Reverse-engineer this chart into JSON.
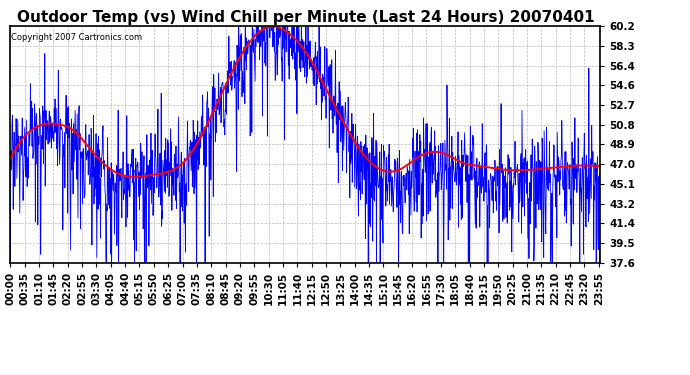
{
  "title": "Outdoor Temp (vs) Wind Chill per Minute (Last 24 Hours) 20070401",
  "copyright_text": "Copyright 2007 Cartronics.com",
  "ylabel_right_ticks": [
    60.2,
    58.3,
    56.4,
    54.6,
    52.7,
    50.8,
    48.9,
    47.0,
    45.1,
    43.2,
    41.4,
    39.5,
    37.6
  ],
  "ylim": [
    37.6,
    60.2
  ],
  "xlim": [
    0,
    1439
  ],
  "background_color": "#ffffff",
  "plot_bg_color": "#ffffff",
  "grid_color": "#aaaaaa",
  "blue_color": "#0000ff",
  "red_color": "#ff0000",
  "title_fontsize": 11,
  "tick_label_fontsize": 7.5,
  "x_tick_labels": [
    "00:00",
    "00:35",
    "01:10",
    "01:45",
    "02:20",
    "02:55",
    "03:30",
    "04:05",
    "04:40",
    "05:15",
    "05:50",
    "06:25",
    "07:00",
    "07:35",
    "08:10",
    "08:45",
    "09:20",
    "09:55",
    "10:30",
    "11:05",
    "11:40",
    "12:15",
    "12:50",
    "13:25",
    "14:00",
    "14:35",
    "15:10",
    "15:45",
    "16:20",
    "16:55",
    "17:30",
    "18:05",
    "18:40",
    "19:15",
    "19:50",
    "20:25",
    "21:00",
    "21:35",
    "22:10",
    "22:45",
    "23:20",
    "23:55"
  ],
  "x_tick_minutes": [
    0,
    35,
    70,
    105,
    140,
    175,
    210,
    245,
    280,
    315,
    350,
    385,
    420,
    455,
    490,
    525,
    560,
    595,
    630,
    665,
    700,
    735,
    770,
    805,
    840,
    875,
    910,
    945,
    980,
    1015,
    1050,
    1085,
    1120,
    1155,
    1190,
    1225,
    1260,
    1295,
    1330,
    1365,
    1400,
    1435
  ],
  "red_keypoints_t": [
    0,
    60,
    120,
    155,
    200,
    270,
    350,
    430,
    530,
    620,
    680,
    740,
    760,
    820,
    860,
    950,
    1000,
    1060,
    1100,
    1150,
    1200,
    1280,
    1439
  ],
  "red_keypoints_v": [
    47.5,
    50.5,
    50.8,
    50.2,
    48.2,
    46.0,
    46.0,
    47.5,
    55.0,
    60.0,
    59.5,
    56.5,
    55.0,
    50.5,
    48.0,
    46.5,
    47.8,
    48.0,
    47.2,
    46.8,
    46.5,
    46.5,
    46.8
  ]
}
